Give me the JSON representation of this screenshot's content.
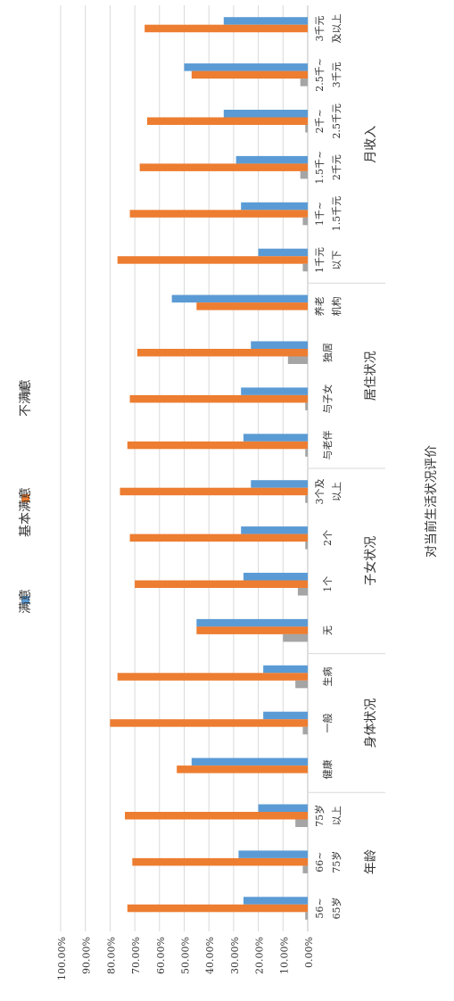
{
  "chart_data": {
    "type": "bar",
    "orientation": "rotated-90",
    "xlabel": "对当前生活状况评价",
    "ylim": [
      0,
      1
    ],
    "y_ticks": [
      "0.00%",
      "10.00%",
      "20.00%",
      "30.00%",
      "40.00%",
      "50.00%",
      "60.00%",
      "70.00%",
      "80.00%",
      "90.00%",
      "100.00%"
    ],
    "grid": true,
    "legend_position": "top",
    "series": [
      {
        "name": "满意",
        "color": "#5b9bd5"
      },
      {
        "name": "基本满意",
        "color": "#ed7d31"
      },
      {
        "name": "不满意",
        "color": "#a5a5a5"
      }
    ],
    "groups": [
      {
        "name": "年龄",
        "categories": [
          {
            "line1": "56~",
            "line2": "65岁",
            "values": [
              0.26,
              0.73,
              0.01
            ]
          },
          {
            "line1": "66~",
            "line2": "75岁",
            "values": [
              0.28,
              0.71,
              0.02
            ]
          },
          {
            "line1": "75岁",
            "line2": "以上",
            "values": [
              0.2,
              0.74,
              0.05
            ]
          }
        ]
      },
      {
        "name": "身体状况",
        "categories": [
          {
            "line1": "健康",
            "line2": "",
            "values": [
              0.47,
              0.53,
              0.0
            ]
          },
          {
            "line1": "一般",
            "line2": "",
            "values": [
              0.18,
              0.8,
              0.02
            ]
          },
          {
            "line1": "生病",
            "line2": "",
            "values": [
              0.18,
              0.77,
              0.05
            ]
          }
        ]
      },
      {
        "name": "子女状况",
        "categories": [
          {
            "line1": "无",
            "line2": "",
            "values": [
              0.45,
              0.45,
              0.1
            ]
          },
          {
            "line1": "1个",
            "line2": "",
            "values": [
              0.26,
              0.7,
              0.04
            ]
          },
          {
            "line1": "2个",
            "line2": "",
            "values": [
              0.27,
              0.72,
              0.01
            ]
          },
          {
            "line1": "3个及",
            "line2": "以上",
            "values": [
              0.23,
              0.76,
              0.01
            ]
          }
        ]
      },
      {
        "name": "居住状况",
        "categories": [
          {
            "line1": "与老伴",
            "line2": "",
            "values": [
              0.26,
              0.73,
              0.01
            ]
          },
          {
            "line1": "与子女",
            "line2": "",
            "values": [
              0.27,
              0.72,
              0.01
            ]
          },
          {
            "line1": "独居",
            "line2": "",
            "values": [
              0.23,
              0.69,
              0.08
            ]
          },
          {
            "line1": "养老",
            "line2": "机构",
            "values": [
              0.55,
              0.45,
              0.0
            ]
          }
        ]
      },
      {
        "name": "月收入",
        "categories": [
          {
            "line1": "1千元",
            "line2": "以下",
            "values": [
              0.2,
              0.77,
              0.02
            ]
          },
          {
            "line1": "1千~",
            "line2": "1.5千元",
            "values": [
              0.27,
              0.72,
              0.02
            ]
          },
          {
            "line1": "1.5千~",
            "line2": "2千元",
            "values": [
              0.29,
              0.68,
              0.03
            ]
          },
          {
            "line1": "2千~",
            "line2": "2.5千元",
            "values": [
              0.34,
              0.65,
              0.01
            ]
          },
          {
            "line1": "2.5千~",
            "line2": "3千元",
            "values": [
              0.5,
              0.47,
              0.03
            ]
          },
          {
            "line1": "3千元",
            "line2": "及以上",
            "values": [
              0.34,
              0.66,
              0.0
            ]
          }
        ]
      }
    ]
  }
}
